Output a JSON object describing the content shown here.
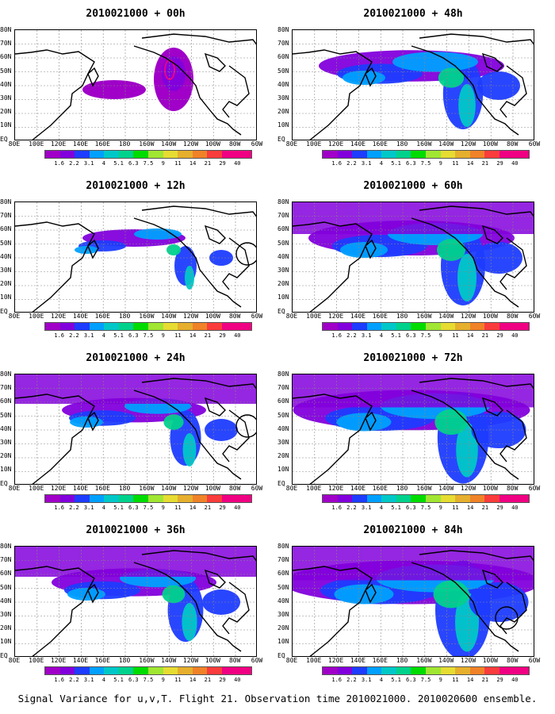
{
  "panels": [
    {
      "title": "2010021000 + 00h"
    },
    {
      "title": "2010021000 + 48h"
    },
    {
      "title": "2010021000 + 12h"
    },
    {
      "title": "2010021000 + 60h"
    },
    {
      "title": "2010021000 + 24h"
    },
    {
      "title": "2010021000 + 72h"
    },
    {
      "title": "2010021000 + 36h"
    },
    {
      "title": "2010021000 + 84h"
    }
  ],
  "lat_labels": [
    "80N",
    "70N",
    "60N",
    "50N",
    "40N",
    "30N",
    "20N",
    "10N",
    "EQ"
  ],
  "lon_labels": [
    "80E",
    "100E",
    "120E",
    "140E",
    "160E",
    "180",
    "160W",
    "140W",
    "120W",
    "100W",
    "80W",
    "60W"
  ],
  "colorbar": {
    "labels": [
      "1.6",
      "2.2",
      "3.1",
      "4",
      "5.1",
      "6.3",
      "7.5",
      "9",
      "11",
      "14",
      "21",
      "29",
      "40"
    ],
    "colors": [
      "#a000c8",
      "#8200dc",
      "#1e3cff",
      "#00a0ff",
      "#00c8c8",
      "#00d28c",
      "#00dc00",
      "#a0e632",
      "#e6dc32",
      "#e6af2d",
      "#f08228",
      "#fa3c3c",
      "#f00082"
    ]
  },
  "caption": "Signal Variance for u,v,T. Flight 21. Observation time 2010021000. 2010020600 ensemble."
}
